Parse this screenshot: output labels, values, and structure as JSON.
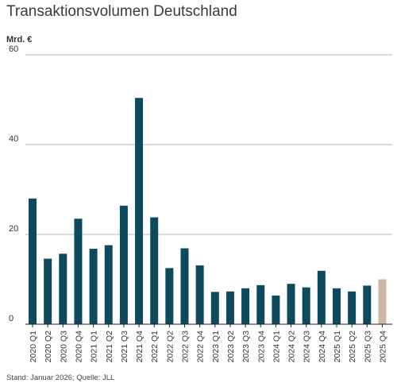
{
  "chart_data": {
    "type": "bar",
    "title": "Transaktionsvolumen Deutschland",
    "ylabel": "Mrd. €",
    "xlabel": "",
    "ylim": [
      0,
      60
    ],
    "yticks": [
      0,
      20,
      40,
      60
    ],
    "grid": true,
    "categories": [
      "2020 Q1",
      "2020 Q2",
      "2020 Q3",
      "2020 Q4",
      "2021 Q1",
      "2021 Q2",
      "2021 Q3",
      "2021 Q4",
      "2022 Q1",
      "2022 Q2",
      "2022 Q3",
      "2022 Q4",
      "2023 Q1",
      "2023 Q2",
      "2023 Q3",
      "2023 Q4",
      "2024 Q1",
      "2024 Q2",
      "2024 Q3",
      "2024 Q4",
      "2025 Q1",
      "2025 Q2",
      "2025 Q3",
      "2025 Q4"
    ],
    "values": [
      28.0,
      14.6,
      15.7,
      23.5,
      16.8,
      17.6,
      26.4,
      50.4,
      23.8,
      12.5,
      16.9,
      13.1,
      7.2,
      7.3,
      8.0,
      8.7,
      6.4,
      9.0,
      8.2,
      11.9,
      8.0,
      7.3,
      8.6,
      10.0
    ],
    "colors": {
      "default": "#0d4a5e",
      "highlight": "#cbb7a5"
    },
    "highlight_index": 23,
    "source": "Stand: Januar 2026; Quelle: JLL"
  }
}
